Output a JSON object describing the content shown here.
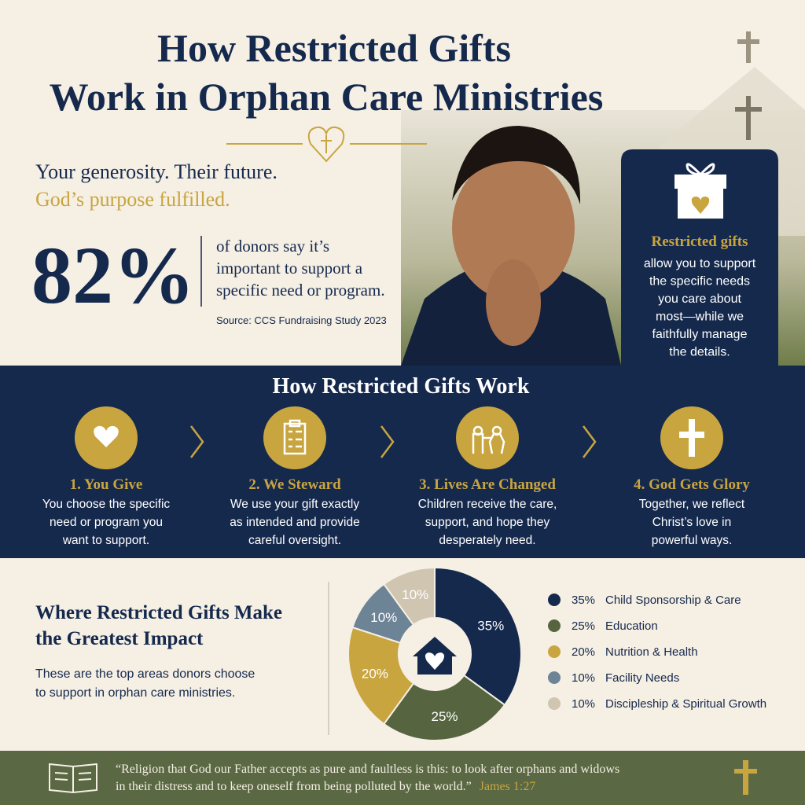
{
  "header": {
    "title_lines": [
      "How Restricted Gifts",
      "Work in Orphan Care Ministries"
    ]
  },
  "intro": {
    "tagline": "Your generosity. Their future.",
    "tagline_accent": "God’s purpose fulfilled."
  },
  "stat": {
    "value": "82%",
    "text_lines": [
      "of donors say it’s",
      "important to support a",
      "specific need or program."
    ],
    "source": "Source: CCS Fundraising Study 2023"
  },
  "callout": {
    "title": "Restricted gifts",
    "text_lines": [
      "allow you to support",
      "the specific needs",
      "you care about",
      "most—while we",
      "faithfully manage",
      "the details."
    ]
  },
  "steps": {
    "title": "How Restricted Gifts Work",
    "items": [
      {
        "title": "1. You Give",
        "lines": [
          "You choose the specific",
          "need or program you",
          "want to support."
        ]
      },
      {
        "title": "2. We Steward",
        "lines": [
          "We use your gift exactly",
          "as intended and provide",
          "careful oversight."
        ]
      },
      {
        "title": "3. Lives Are Changed",
        "lines": [
          "Children receive the care,",
          "support, and hope they",
          "desperately need."
        ]
      },
      {
        "title": "4. God Gets Glory",
        "lines": [
          "Together, we reflect",
          "Christ’s love in",
          "powerful ways."
        ]
      }
    ]
  },
  "impact": {
    "title_lines": [
      "Where Restricted Gifts Make",
      "the Greatest Impact"
    ],
    "text_lines": [
      "These are the top areas donors choose",
      "to support in orphan care ministries."
    ]
  },
  "chart_data": {
    "type": "pie",
    "categories": [
      "Child Sponsorship & Care",
      "Education",
      "Nutrition & Health",
      "Facility Needs",
      "Discipleship & Spiritual Growth"
    ],
    "values": [
      35,
      25,
      20,
      10,
      10
    ],
    "value_labels": [
      "35%",
      "25%",
      "20%",
      "10%",
      "10%"
    ],
    "colors": [
      "#15294d",
      "#56653f",
      "#c9a540",
      "#6d8396",
      "#cfc5b0"
    ]
  },
  "footer": {
    "quote_lines": [
      "“Religion that God our Father accepts as pure and faultless is this: to look after orphans and widows",
      "in their distress and to keep oneself from being polluted by the world.”"
    ],
    "reference": "James 1:27"
  }
}
